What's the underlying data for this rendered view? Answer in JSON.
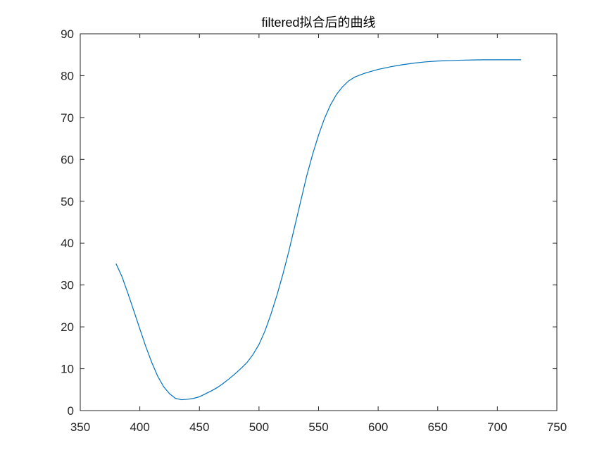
{
  "chart_data": {
    "type": "line",
    "title": "filtered拟合后的曲线",
    "xlabel": "",
    "ylabel": "",
    "xlim": [
      350,
      750
    ],
    "ylim": [
      0,
      90
    ],
    "x_ticks": [
      350,
      400,
      450,
      500,
      550,
      600,
      650,
      700,
      750
    ],
    "y_ticks": [
      0,
      10,
      20,
      30,
      40,
      50,
      60,
      70,
      80,
      90
    ],
    "grid": false,
    "line_color": "#0072BD",
    "series": [
      {
        "x": [
          380,
          385,
          390,
          395,
          400,
          405,
          410,
          415,
          420,
          425,
          430,
          435,
          440,
          445,
          450,
          455,
          460,
          465,
          470,
          475,
          480,
          485,
          490,
          495,
          500,
          505,
          510,
          515,
          520,
          525,
          530,
          535,
          540,
          545,
          550,
          555,
          560,
          565,
          570,
          575,
          580,
          585,
          590,
          600,
          610,
          620,
          630,
          640,
          650,
          660,
          670,
          680,
          690,
          700,
          710,
          720
        ],
        "y": [
          35.1,
          32.0,
          28.0,
          23.8,
          19.5,
          15.3,
          11.5,
          8.2,
          5.7,
          4.0,
          2.9,
          2.6,
          2.7,
          2.9,
          3.3,
          4.0,
          4.7,
          5.5,
          6.5,
          7.6,
          8.8,
          10.1,
          11.5,
          13.4,
          15.8,
          19.0,
          23.0,
          27.5,
          32.5,
          38.0,
          44.0,
          50.0,
          56.0,
          61.2,
          65.8,
          69.8,
          73.0,
          75.5,
          77.3,
          78.7,
          79.6,
          80.2,
          80.7,
          81.5,
          82.1,
          82.6,
          83.0,
          83.3,
          83.5,
          83.6,
          83.7,
          83.75,
          83.8,
          83.8,
          83.8,
          83.8
        ]
      }
    ]
  }
}
